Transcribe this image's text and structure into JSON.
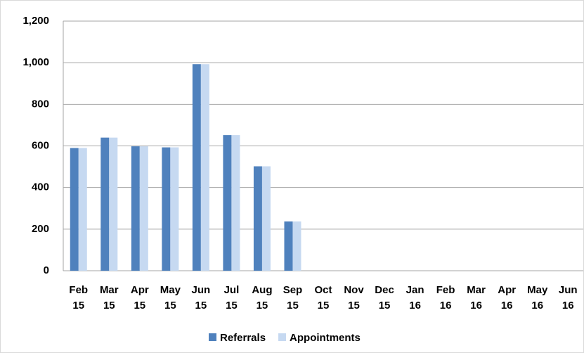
{
  "chart_data": {
    "type": "bar",
    "categories": [
      "Feb 15",
      "Mar 15",
      "Apr 15",
      "May 15",
      "Jun 15",
      "Jul 15",
      "Aug 15",
      "Sep 15",
      "Oct 15",
      "Nov 15",
      "Dec 15",
      "Jan 16",
      "Feb 16",
      "Mar 16",
      "Apr 16",
      "May 16",
      "Jun 16"
    ],
    "series": [
      {
        "name": "Referrals",
        "color": "#4f81bd",
        "values": [
          590,
          640,
          598,
          593,
          993,
          652,
          502,
          237,
          null,
          null,
          null,
          null,
          null,
          null,
          null,
          null,
          null
        ]
      },
      {
        "name": "Appointments",
        "color": "#c6d9f1",
        "values": [
          590,
          640,
          598,
          593,
          993,
          652,
          502,
          237,
          null,
          null,
          null,
          null,
          null,
          null,
          null,
          null,
          null
        ]
      }
    ],
    "ylim": [
      0,
      1200
    ],
    "yticks": [
      0,
      200,
      400,
      600,
      800,
      {
        "value": 1000,
        "label": "1,000"
      },
      {
        "value": 1200,
        "label": "1,200"
      }
    ],
    "grid": true,
    "legend": "bottom"
  }
}
